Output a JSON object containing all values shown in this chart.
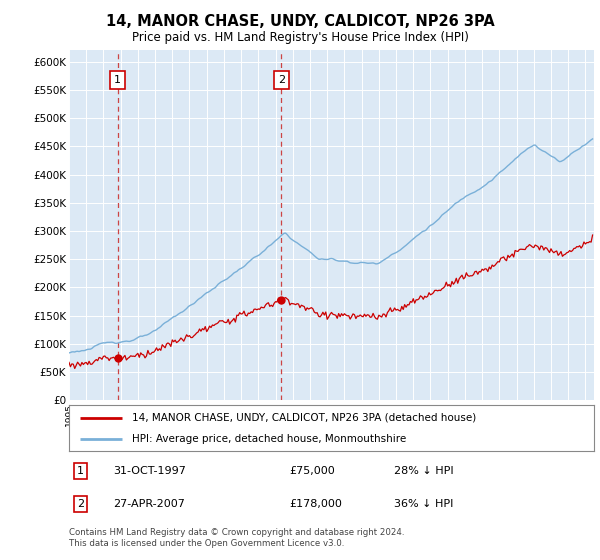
{
  "title": "14, MANOR CHASE, UNDY, CALDICOT, NP26 3PA",
  "subtitle": "Price paid vs. HM Land Registry's House Price Index (HPI)",
  "background_color": "#ffffff",
  "plot_bg_color": "#dce9f5",
  "red_line_color": "#cc0000",
  "blue_line_color": "#7ab0d8",
  "sale1_date": 1997.83,
  "sale1_price": 75000,
  "sale2_date": 2007.33,
  "sale2_price": 178000,
  "ylim": [
    0,
    620000
  ],
  "xlim": [
    1995.0,
    2025.5
  ],
  "yticks": [
    0,
    50000,
    100000,
    150000,
    200000,
    250000,
    300000,
    350000,
    400000,
    450000,
    500000,
    550000,
    600000
  ],
  "legend_label_red": "14, MANOR CHASE, UNDY, CALDICOT, NP26 3PA (detached house)",
  "legend_label_blue": "HPI: Average price, detached house, Monmouthshire",
  "note1_num": "1",
  "note1_date": "31-OCT-1997",
  "note1_price": "£75,000",
  "note1_hpi": "28% ↓ HPI",
  "note2_num": "2",
  "note2_date": "27-APR-2007",
  "note2_price": "£178,000",
  "note2_hpi": "36% ↓ HPI",
  "footer": "Contains HM Land Registry data © Crown copyright and database right 2024.\nThis data is licensed under the Open Government Licence v3.0."
}
